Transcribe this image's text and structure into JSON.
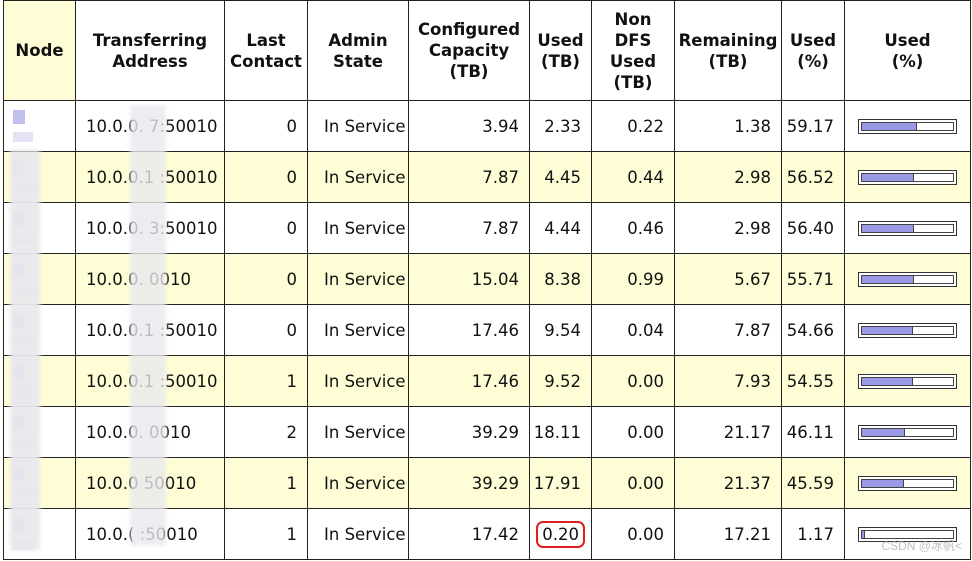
{
  "columns": [
    "Node",
    "Transferring\nAddress",
    "Last\nContact",
    "Admin\nState",
    "Configured\nCapacity\n(TB)",
    "Used\n(TB)",
    "Non\nDFS\nUsed\n(TB)",
    "Remaining\n(TB)",
    "Used\n(%)",
    "Used\n(%)"
  ],
  "rows": [
    {
      "address": "10.0.0.  7:50010",
      "last_contact": "0",
      "admin_state": "In Service",
      "configured": "3.94",
      "used": "2.33",
      "non_dfs": "0.22",
      "remaining": "1.38",
      "used_pct": "59.17",
      "bar_fraction": 0.5917
    },
    {
      "address": "10.0.0.1  :50010",
      "last_contact": "0",
      "admin_state": "In Service",
      "configured": "7.87",
      "used": "4.45",
      "non_dfs": "0.44",
      "remaining": "2.98",
      "used_pct": "56.52",
      "bar_fraction": 0.5652
    },
    {
      "address": "10.0.0.  3:50010",
      "last_contact": "0",
      "admin_state": "In Service",
      "configured": "7.87",
      "used": "4.44",
      "non_dfs": "0.46",
      "remaining": "2.98",
      "used_pct": "56.40",
      "bar_fraction": 0.564
    },
    {
      "address": "10.0.0.   0010",
      "last_contact": "0",
      "admin_state": "In Service",
      "configured": "15.04",
      "used": "8.38",
      "non_dfs": "0.99",
      "remaining": "5.67",
      "used_pct": "55.71",
      "bar_fraction": 0.5571
    },
    {
      "address": "10.0.0.1  :50010",
      "last_contact": "0",
      "admin_state": "In Service",
      "configured": "17.46",
      "used": "9.54",
      "non_dfs": "0.04",
      "remaining": "7.87",
      "used_pct": "54.66",
      "bar_fraction": 0.5466
    },
    {
      "address": "10.0.0.1  :50010",
      "last_contact": "1",
      "admin_state": "In Service",
      "configured": "17.46",
      "used": "9.52",
      "non_dfs": "0.00",
      "remaining": "7.93",
      "used_pct": "54.55",
      "bar_fraction": 0.5455
    },
    {
      "address": "10.0.0.   0010",
      "last_contact": "2",
      "admin_state": "In Service",
      "configured": "39.29",
      "used": "18.11",
      "non_dfs": "0.00",
      "remaining": "21.17",
      "used_pct": "46.11",
      "bar_fraction": 0.4611
    },
    {
      "address": "10.0.0   50010",
      "last_contact": "1",
      "admin_state": "In Service",
      "configured": "39.29",
      "used": "17.91",
      "non_dfs": "0.00",
      "remaining": "21.37",
      "used_pct": "45.59",
      "bar_fraction": 0.4559
    },
    {
      "address": "10.0.(   :50010",
      "last_contact": "1",
      "admin_state": "In Service",
      "configured": "17.42",
      "used": "0.20",
      "non_dfs": "0.00",
      "remaining": "17.21",
      "used_pct": "1.17",
      "bar_fraction": 0.0117,
      "highlight_used": true
    }
  ],
  "watermark": "CSDN @冰帆<",
  "colors": {
    "stripe": "#fffdd6",
    "bar_fill": "#9999e6",
    "highlight": "#e02020",
    "link": "#3333cc"
  }
}
